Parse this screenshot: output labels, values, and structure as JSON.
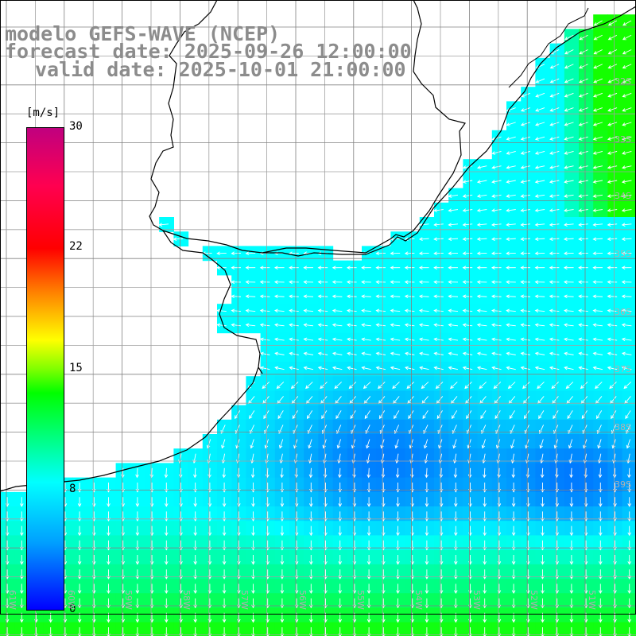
{
  "title": {
    "line1": "modelo GEFS-WAVE (NCEP)",
    "line2": "forecast date: 2025-09-26 12:00:00",
    "line3": "valid date: 2025-10-01 21:00:00"
  },
  "colorbar": {
    "unit": "[m/s]",
    "ticks": [
      "30",
      "22",
      "15",
      "8",
      "0"
    ],
    "colors": [
      "#0000ff",
      "#00a0ff",
      "#00ffff",
      "#00ff00",
      "#ffff00",
      "#ff8000",
      "#ff0000",
      "#c0007f"
    ]
  },
  "grid_labels": {
    "lat": [
      "32S",
      "33S",
      "34S",
      "35S",
      "36S",
      "37S",
      "38S",
      "39S"
    ],
    "lon": [
      "61W",
      "60W",
      "59W",
      "58W",
      "57W",
      "56W",
      "55W",
      "54W",
      "53W",
      "52W",
      "51W"
    ]
  },
  "colors": {
    "grid": "#808080",
    "coast": "#000000",
    "arrow": "#ffffff",
    "title": "#8c8c8c"
  }
}
